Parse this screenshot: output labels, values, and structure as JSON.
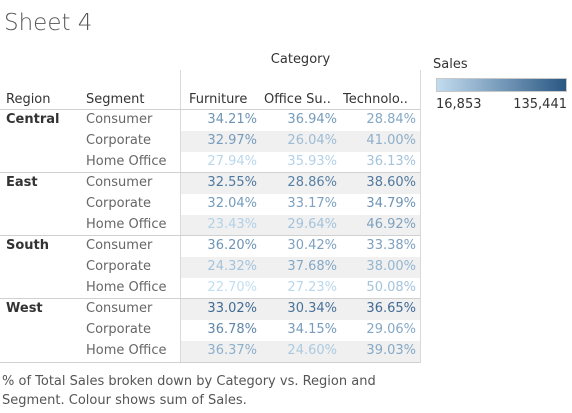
{
  "title": "Sheet 4",
  "header": {
    "category_label": "Category",
    "region_label": "Region",
    "segment_label": "Segment",
    "columns": [
      "Furniture",
      "Office Su..",
      "Technolo.."
    ]
  },
  "legend": {
    "title": "Sales",
    "min_label": "16,853",
    "max_label": "135,441",
    "color_low": "#c2dcef",
    "color_high": "#2a5783"
  },
  "caption": "% of Total Sales broken down by Category vs. Region and Segment.  Colour shows sum of Sales.",
  "chart_data": {
    "type": "table",
    "title": "Sheet 4",
    "columns": [
      "Furniture",
      "Office Su..",
      "Technolo.."
    ],
    "rows": [
      {
        "region": "Central",
        "segment": "Consumer",
        "values": [
          "34.21%",
          "36.94%",
          "28.84%"
        ],
        "shade": [
          0.55,
          0.5,
          0.4
        ]
      },
      {
        "region": "",
        "segment": "Corporate",
        "values": [
          "32.97%",
          "26.04%",
          "41.00%"
        ],
        "shade": [
          0.5,
          0.25,
          0.35
        ]
      },
      {
        "region": "",
        "segment": "Home Office",
        "values": [
          "27.94%",
          "35.93%",
          "36.13%"
        ],
        "shade": [
          0.05,
          0.1,
          0.2
        ]
      },
      {
        "region": "East",
        "segment": "Consumer",
        "values": [
          "32.55%",
          "28.86%",
          "38.60%"
        ],
        "shade": [
          0.75,
          0.7,
          0.75
        ]
      },
      {
        "region": "",
        "segment": "Corporate",
        "values": [
          "32.04%",
          "33.17%",
          "34.79%"
        ],
        "shade": [
          0.5,
          0.45,
          0.55
        ]
      },
      {
        "region": "",
        "segment": "Home Office",
        "values": [
          "23.43%",
          "29.64%",
          "46.92%"
        ],
        "shade": [
          0.1,
          0.2,
          0.45
        ]
      },
      {
        "region": "South",
        "segment": "Consumer",
        "values": [
          "36.20%",
          "30.42%",
          "33.38%"
        ],
        "shade": [
          0.55,
          0.45,
          0.45
        ]
      },
      {
        "region": "",
        "segment": "Corporate",
        "values": [
          "24.32%",
          "37.68%",
          "38.00%"
        ],
        "shade": [
          0.2,
          0.4,
          0.3
        ]
      },
      {
        "region": "",
        "segment": "Home Office",
        "values": [
          "22.70%",
          "27.23%",
          "50.08%"
        ],
        "shade": [
          0.0,
          0.05,
          0.2
        ]
      },
      {
        "region": "West",
        "segment": "Consumer",
        "values": [
          "33.02%",
          "30.34%",
          "36.65%"
        ],
        "shade": [
          0.85,
          0.8,
          0.85
        ]
      },
      {
        "region": "",
        "segment": "Corporate",
        "values": [
          "36.78%",
          "34.15%",
          "29.06%"
        ],
        "shade": [
          0.65,
          0.5,
          0.4
        ]
      },
      {
        "region": "",
        "segment": "Home Office",
        "values": [
          "36.37%",
          "24.60%",
          "39.03%"
        ],
        "shade": [
          0.35,
          0.15,
          0.4
        ]
      }
    ]
  }
}
